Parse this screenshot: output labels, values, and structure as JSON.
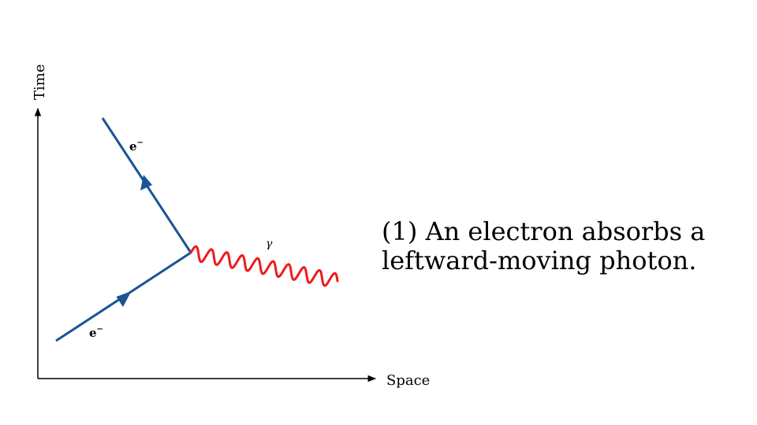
{
  "diagram": {
    "y_axis_label": "Time",
    "x_axis_label": "Space",
    "incoming_electron_label": "e",
    "outgoing_electron_label": "e",
    "charge_superscript": "−",
    "photon_label": "γ",
    "colors": {
      "electron_line": "#1a5496",
      "photon_line": "#ee1c1c",
      "axes": "#000000"
    }
  },
  "caption": {
    "line1": "(1) An electron absorbs a",
    "line2": "leftward-moving photon."
  }
}
